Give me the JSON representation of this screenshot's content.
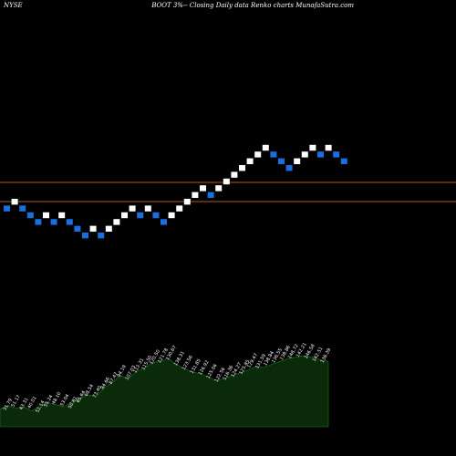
{
  "header": {
    "exchange": "NYSE",
    "title": "BOOT 3%-- Closing Daily data Renko charts MunafaSutra.com"
  },
  "colors": {
    "background": "#000000",
    "up_brick": "#ffffff",
    "down_brick": "#1a6fe0",
    "level_line": "#b05a1c",
    "volume_fill": "#0a2a0a",
    "volume_edge": "#1f7a1f",
    "label_text": "#ffffff"
  },
  "chart_data": {
    "type": "renko",
    "brick_directions": [
      "D",
      "U",
      "D",
      "D",
      "D",
      "U",
      "D",
      "U",
      "D",
      "D",
      "D",
      "U",
      "D",
      "U",
      "U",
      "U",
      "U",
      "D",
      "U",
      "D",
      "D",
      "U",
      "U",
      "U",
      "U",
      "U",
      "D",
      "U",
      "U",
      "U",
      "U",
      "U",
      "U",
      "U",
      "D",
      "D",
      "D",
      "U",
      "U",
      "U",
      "D",
      "U",
      "D",
      "D"
    ],
    "levels": [],
    "volume_profile": [
      25,
      30,
      26,
      28,
      22,
      30,
      34,
      31,
      28,
      36,
      40,
      45,
      43,
      55,
      62,
      72,
      68,
      78,
      82,
      90,
      92,
      96,
      88,
      82,
      77,
      75,
      70,
      65,
      68,
      72,
      76,
      80,
      85,
      84,
      88,
      92,
      96,
      98,
      100,
      98,
      94,
      92
    ],
    "volume_labels": [
      "31.79",
      "51.17",
      "43.31",
      "40.01",
      "51.14",
      "55.24",
      "48.10",
      "53.04",
      "50.81",
      "65.64",
      "68.54",
      "73.40",
      "84.66",
      "87.47",
      "94.19",
      "107.03",
      "112.31",
      "115.50",
      "120.50",
      "121.78",
      "130.67",
      "138.31",
      "123.56",
      "131.85",
      "126.92",
      "125.06",
      "122.56",
      "116.36",
      "124.27",
      "125.85",
      "129.47",
      "131.59",
      "138.84",
      "136.55",
      "138.86",
      "148.72",
      "142.21",
      "146.58",
      "142.51",
      "136.39"
    ]
  }
}
